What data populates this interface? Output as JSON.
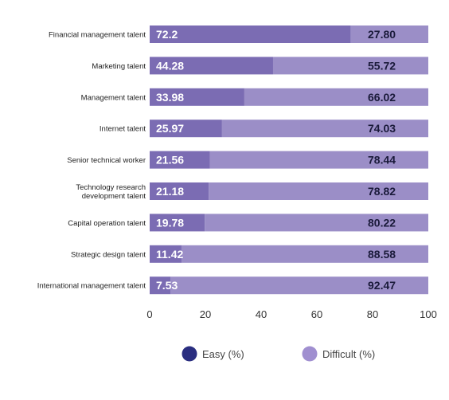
{
  "chart_data": {
    "type": "bar",
    "orientation": "horizontal",
    "stacked": true,
    "categories": [
      "Financial management talent",
      "Marketing talent",
      "Management talent",
      "Internet talent",
      "Senior technical worker",
      "Technology research development talent",
      "Capital operation talent",
      "Strategic design talent",
      "International management talent"
    ],
    "category_lines": [
      [
        "Financial management talent"
      ],
      [
        "Marketing talent"
      ],
      [
        "Management talent"
      ],
      [
        "Internet talent"
      ],
      [
        "Senior technical worker"
      ],
      [
        "Technology research",
        "development talent"
      ],
      [
        "Capital operation talent"
      ],
      [
        "Strategic design talent"
      ],
      [
        "International management talent"
      ]
    ],
    "series": [
      {
        "name": "Easy (%)",
        "values": [
          72.2,
          44.28,
          33.98,
          25.97,
          21.56,
          21.18,
          19.78,
          11.42,
          7.53
        ],
        "labels": [
          "72.2",
          "44.28",
          "33.98",
          "25.97",
          "21.56",
          "21.18",
          "19.78",
          "11.42",
          "7.53"
        ],
        "bar_color": "#7b6cb3",
        "legend_color": "#2a2e80",
        "label_color": "#ffffff"
      },
      {
        "name": "Difficult (%)",
        "values": [
          27.8,
          55.72,
          66.02,
          74.03,
          78.44,
          78.82,
          80.22,
          88.58,
          92.47
        ],
        "labels": [
          "27.80",
          "55.72",
          "66.02",
          "74.03",
          "78.44",
          "78.82",
          "80.22",
          "88.58",
          "92.47"
        ],
        "bar_color": "#9b8ec7",
        "legend_color": "#a08fd0",
        "label_color": "#1a1a3a"
      }
    ],
    "xlim": [
      0,
      100
    ],
    "xticks": [
      "0",
      "20",
      "40",
      "60",
      "80",
      "100"
    ],
    "xtick_values": [
      0,
      20,
      40,
      60,
      80,
      100
    ],
    "grid": false,
    "legend_position": "bottom"
  }
}
